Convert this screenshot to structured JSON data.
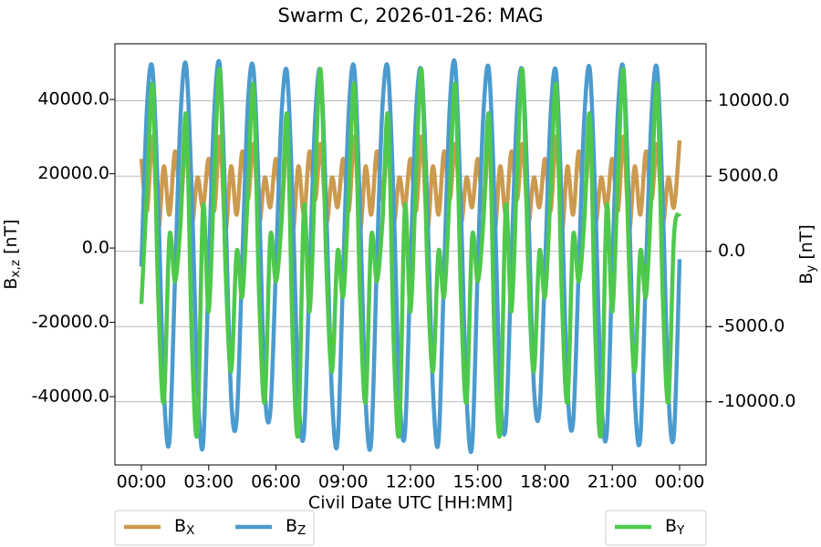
{
  "chart_data": {
    "type": "line",
    "title": "Swarm C, 2026-01-26: MAG",
    "x_label": "Civil Date UTC [HH:MM]",
    "y_label": "Bx,z [nT]",
    "y2_label": "By [nT]",
    "xlim": [
      -1.18,
      25.18
    ],
    "ylim": [
      -58400,
      55000
    ],
    "y2lim": [
      -14200,
      13800
    ],
    "xticks": [
      {
        "value": 0,
        "label": "00:00"
      },
      {
        "value": 3,
        "label": "03:00"
      },
      {
        "value": 6,
        "label": "06:00"
      },
      {
        "value": 9,
        "label": "09:00"
      },
      {
        "value": 12,
        "label": "12:00"
      },
      {
        "value": 15,
        "label": "15:00"
      },
      {
        "value": 18,
        "label": "18:00"
      },
      {
        "value": 21,
        "label": "21:00"
      },
      {
        "value": 24,
        "label": "00:00"
      }
    ],
    "yticks": [
      {
        "value": -40000,
        "label": "-40000.0"
      },
      {
        "value": -20000,
        "label": "-20000.0"
      },
      {
        "value": 0,
        "label": "0.0"
      },
      {
        "value": 20000,
        "label": "20000.0"
      },
      {
        "value": 40000,
        "label": "40000.0"
      }
    ],
    "y2ticks": [
      {
        "value": -10000,
        "label": "-10000.0"
      },
      {
        "value": -5000,
        "label": "-5000.0"
      },
      {
        "value": 0,
        "label": "0.0"
      },
      {
        "value": 5000,
        "label": "5000.0"
      },
      {
        "value": 10000,
        "label": "10000.0"
      }
    ],
    "grid": "y2",
    "legend": "below left",
    "legend2": "below right",
    "x": [
      0,
      0.25,
      0.5,
      0.75,
      1,
      1.25,
      1.5,
      1.75,
      2,
      2.25,
      2.5,
      2.75,
      3,
      3.25,
      3.5,
      3.75,
      4,
      4.25,
      4.5,
      4.75,
      5,
      5.25,
      5.5,
      5.75,
      6,
      6.25,
      6.5,
      6.75,
      7,
      7.25,
      7.5,
      7.75,
      8,
      8.25,
      8.5,
      8.75,
      9,
      9.25,
      9.5,
      9.75,
      10,
      10.25,
      10.5,
      10.75,
      11,
      11.25,
      11.5,
      11.75,
      12,
      12.25,
      12.5,
      12.75,
      13,
      13.25,
      13.5,
      13.75,
      14,
      14.25,
      14.5,
      14.75,
      15,
      15.25,
      15.5,
      15.75,
      16,
      16.25,
      16.5,
      16.75,
      17,
      17.25,
      17.5,
      17.75,
      18,
      18.25,
      18.5,
      18.75,
      19,
      19.25,
      19.5,
      19.75,
      20,
      20.25,
      20.5,
      20.75,
      21,
      21.25,
      21.5,
      21.75,
      22,
      22.25,
      22.5,
      22.75,
      23,
      23.25,
      23.5,
      23.75,
      24
    ],
    "series": [
      {
        "name": "BX",
        "color": "#cc9a4e",
        "axis": "y",
        "values": [
          24000,
          10000,
          30000,
          5000,
          22000,
          9000,
          26000,
          13000,
          28000,
          7000,
          19000,
          11000,
          24000,
          10000,
          30000,
          5000,
          22000,
          9000,
          26000,
          13000,
          28000,
          7000,
          19000,
          11000,
          24000,
          10000,
          30000,
          5000,
          22000,
          9000,
          26000,
          13000,
          28000,
          7000,
          19000,
          11000,
          24000,
          10000,
          30000,
          5000,
          22000,
          9000,
          26000,
          13000,
          28000,
          7000,
          19000,
          11000,
          24000,
          10000,
          30000,
          5000,
          22000,
          9000,
          26000,
          13000,
          28000,
          7000,
          19000,
          11000,
          24000,
          10000,
          30000,
          5000,
          22000,
          9000,
          26000,
          13000,
          28000,
          7000,
          19000,
          11000,
          24000,
          10000,
          30000,
          5000,
          22000,
          9000,
          26000,
          13000,
          28000,
          7000,
          19000,
          11000,
          24000,
          10000,
          30000,
          5000,
          22000,
          9000,
          26000,
          13000,
          28000,
          7000,
          19000,
          11000,
          29000
        ]
      },
      {
        "name": "BZ",
        "color": "#4b9bcf",
        "axis": "y",
        "values": [
          -5000,
          38000,
          48000,
          12000,
          -38000,
          -52000,
          -8000,
          36000,
          49000,
          14000,
          -36000,
          -53000,
          -6000,
          37000,
          49000,
          10000,
          -40000,
          -46000,
          -3000,
          39000,
          48000,
          12000,
          -38000,
          -44000,
          -5000,
          36000,
          47000,
          11000,
          -39000,
          -50000,
          -7000,
          35000,
          47000,
          9000,
          -40000,
          -52000,
          -6000,
          37000,
          48000,
          10000,
          -41000,
          -52000,
          -4000,
          38000,
          48000,
          12000,
          -38000,
          -50000,
          -5000,
          37000,
          47000,
          11000,
          -38000,
          -52000,
          -6000,
          38000,
          49000,
          10000,
          -40000,
          -53000,
          -5000,
          36000,
          48000,
          12000,
          -38000,
          -48000,
          -4000,
          37000,
          47000,
          11000,
          -37000,
          -44000,
          -5000,
          36000,
          47000,
          10000,
          -38000,
          -47000,
          -6000,
          35000,
          48000,
          11000,
          -39000,
          -50000,
          -5000,
          37000,
          48000,
          10000,
          -40000,
          -51000,
          -6000,
          36000,
          48000,
          12000,
          -39000,
          -50000,
          -3000
        ]
      },
      {
        "name": "BY",
        "color": "#4ec94c",
        "axis": "y2",
        "values": [
          -3500,
          4000,
          11000,
          -3000,
          -10000,
          1000,
          -2000,
          2000,
          9000,
          -6000,
          -12000,
          3000,
          -4000,
          5000,
          12000,
          -1000,
          -8000,
          0,
          -3000,
          4000,
          11000,
          -3000,
          -10000,
          1000,
          -2000,
          2000,
          9000,
          -6000,
          -12000,
          3000,
          -4000,
          5000,
          12000,
          -1000,
          -8000,
          0,
          -3000,
          4000,
          11000,
          -3000,
          -10000,
          1000,
          -2000,
          2000,
          9000,
          -6000,
          -12000,
          3000,
          -4000,
          5000,
          12000,
          -1000,
          -8000,
          0,
          -3000,
          4000,
          11000,
          -3000,
          -10000,
          1000,
          -2000,
          2000,
          9000,
          -6000,
          -12000,
          3000,
          -4000,
          5000,
          12000,
          -1000,
          -8000,
          0,
          -3000,
          4000,
          11000,
          -3000,
          -10000,
          1000,
          -2000,
          2000,
          9000,
          -6000,
          -12000,
          3000,
          -4000,
          5000,
          12000,
          -1000,
          -8000,
          0,
          -3000,
          4000,
          11000,
          -3000,
          -10000,
          1000,
          2500
        ]
      }
    ]
  }
}
